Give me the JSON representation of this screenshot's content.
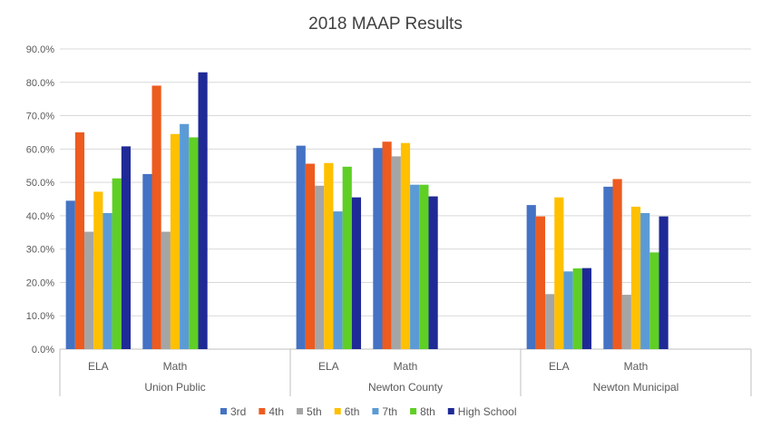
{
  "chart_data": {
    "type": "bar",
    "title": "2018 MAAP Results",
    "xlabel": "",
    "ylabel": "",
    "ylim": [
      0,
      0.9
    ],
    "yticks": [
      0,
      0.1,
      0.2,
      0.3,
      0.4,
      0.5,
      0.6,
      0.7,
      0.8,
      0.9
    ],
    "ytick_labels": [
      "0.0%",
      "10.0%",
      "20.0%",
      "30.0%",
      "40.0%",
      "50.0%",
      "60.0%",
      "70.0%",
      "80.0%",
      "90.0%"
    ],
    "grid": true,
    "legend_position": "bottom",
    "groups": [
      "Union Public",
      "Newton County",
      "Newton Municipal"
    ],
    "subcategories": [
      "ELA",
      "Math"
    ],
    "series": [
      {
        "name": "3rd",
        "color": "#4472C4",
        "values": [
          0.445,
          0.525,
          0.61,
          0.603,
          0.432,
          0.487
        ]
      },
      {
        "name": "4th",
        "color": "#ED5B1F",
        "values": [
          0.65,
          0.79,
          0.556,
          0.622,
          0.398,
          0.51
        ]
      },
      {
        "name": "5th",
        "color": "#A5A5A5",
        "values": [
          0.352,
          0.352,
          0.49,
          0.578,
          0.165,
          0.163
        ]
      },
      {
        "name": "6th",
        "color": "#FFC000",
        "values": [
          0.472,
          0.645,
          0.558,
          0.618,
          0.455,
          0.427
        ]
      },
      {
        "name": "7th",
        "color": "#5B9BD5",
        "values": [
          0.408,
          0.675,
          0.413,
          0.493,
          0.233,
          0.408
        ]
      },
      {
        "name": "8th",
        "color": "#5FCF25",
        "values": [
          0.512,
          0.635,
          0.547,
          0.493,
          0.242,
          0.29
        ]
      },
      {
        "name": "High School",
        "color": "#1F2A96",
        "values": [
          0.608,
          0.83,
          0.455,
          0.458,
          0.243,
          0.398
        ]
      }
    ]
  }
}
